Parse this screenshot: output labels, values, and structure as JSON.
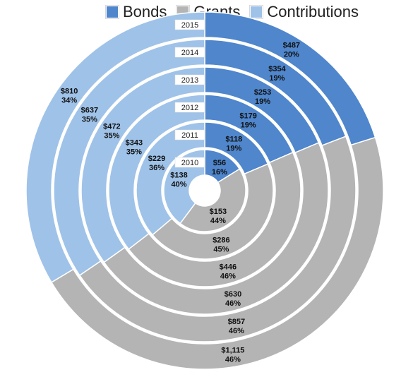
{
  "colors": {
    "Bonds": "#4f86cc",
    "Grants": "#b4b4b4",
    "Contributions": "#9fc2e8"
  },
  "chart_data": {
    "type": "doughnut",
    "legend_position": "top-right",
    "series_names": [
      "Bonds",
      "Grants",
      "Contributions"
    ],
    "rings": [
      {
        "year": "2010",
        "values": [
          56,
          153,
          138
        ],
        "value_labels": [
          "$56",
          "$153",
          "$138"
        ],
        "pct_labels": [
          "16%",
          "44%",
          "40%"
        ]
      },
      {
        "year": "2011",
        "values": [
          118,
          286,
          229
        ],
        "value_labels": [
          "$118",
          "$286",
          "$229"
        ],
        "pct_labels": [
          "19%",
          "45%",
          "36%"
        ]
      },
      {
        "year": "2012",
        "values": [
          179,
          446,
          343
        ],
        "value_labels": [
          "$179",
          "$446",
          "$343"
        ],
        "pct_labels": [
          "19%",
          "46%",
          "35%"
        ]
      },
      {
        "year": "2013",
        "values": [
          253,
          630,
          472
        ],
        "value_labels": [
          "$253",
          "$630",
          "$472"
        ],
        "pct_labels": [
          "19%",
          "46%",
          "35%"
        ]
      },
      {
        "year": "2014",
        "values": [
          354,
          857,
          637
        ],
        "value_labels": [
          "$354",
          "$857",
          "$637"
        ],
        "pct_labels": [
          "19%",
          "46%",
          "35%"
        ]
      },
      {
        "year": "2015",
        "values": [
          487,
          1115,
          810
        ],
        "value_labels": [
          "$487",
          "$1,115",
          "$810"
        ],
        "pct_labels": [
          "20%",
          "46%",
          "34%"
        ]
      }
    ]
  }
}
